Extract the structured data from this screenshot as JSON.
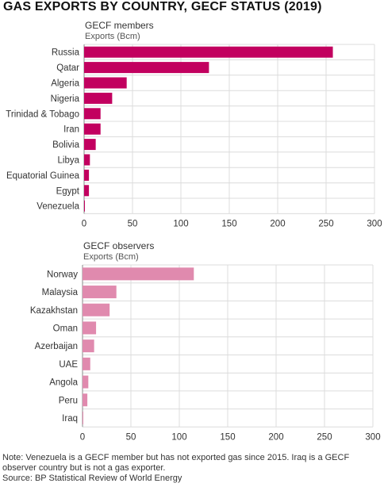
{
  "title": "GAS EXPORTS BY COUNTRY, GECF STATUS (2019)",
  "colors": {
    "members": "#c2005f",
    "observers": "#e08aae",
    "grid": "#dcdcdc",
    "axis": "#888888"
  },
  "chart_data": [
    {
      "type": "bar",
      "orientation": "horizontal",
      "title": "GECF members",
      "xlabel": "Exports (Bcm)",
      "categories": [
        "Russia",
        "Qatar",
        "Algeria",
        "Nigeria",
        "Trinidad & Tobago",
        "Iran",
        "Bolivia",
        "Libya",
        "Equatorial Guinea",
        "Egypt",
        "Venezuela"
      ],
      "values": [
        257,
        129,
        44,
        29,
        17,
        17,
        12,
        6,
        5,
        5,
        0
      ],
      "xlim": [
        0,
        300
      ],
      "xticks": [
        0,
        50,
        100,
        150,
        200,
        250,
        300
      ],
      "grid": true
    },
    {
      "type": "bar",
      "orientation": "horizontal",
      "title": "GECF observers",
      "xlabel": "Exports (Bcm)",
      "categories": [
        "Norway",
        "Malaysia",
        "Kazakhstan",
        "Oman",
        "Azerbaijan",
        "UAE",
        "Angola",
        "Peru",
        "Iraq"
      ],
      "values": [
        115,
        35,
        28,
        14,
        12,
        8,
        6,
        5,
        0
      ],
      "xlim": [
        0,
        300
      ],
      "xticks": [
        0,
        50,
        100,
        150,
        200,
        250,
        300
      ],
      "grid": true
    }
  ],
  "notes": {
    "line1": "Note: Venezuela is a GECF member but has not exported gas since 2015. Iraq is a GECF",
    "line2": "observer country but is not a gas exporter.",
    "source": "Source: BP Statistical Review of World Energy"
  }
}
